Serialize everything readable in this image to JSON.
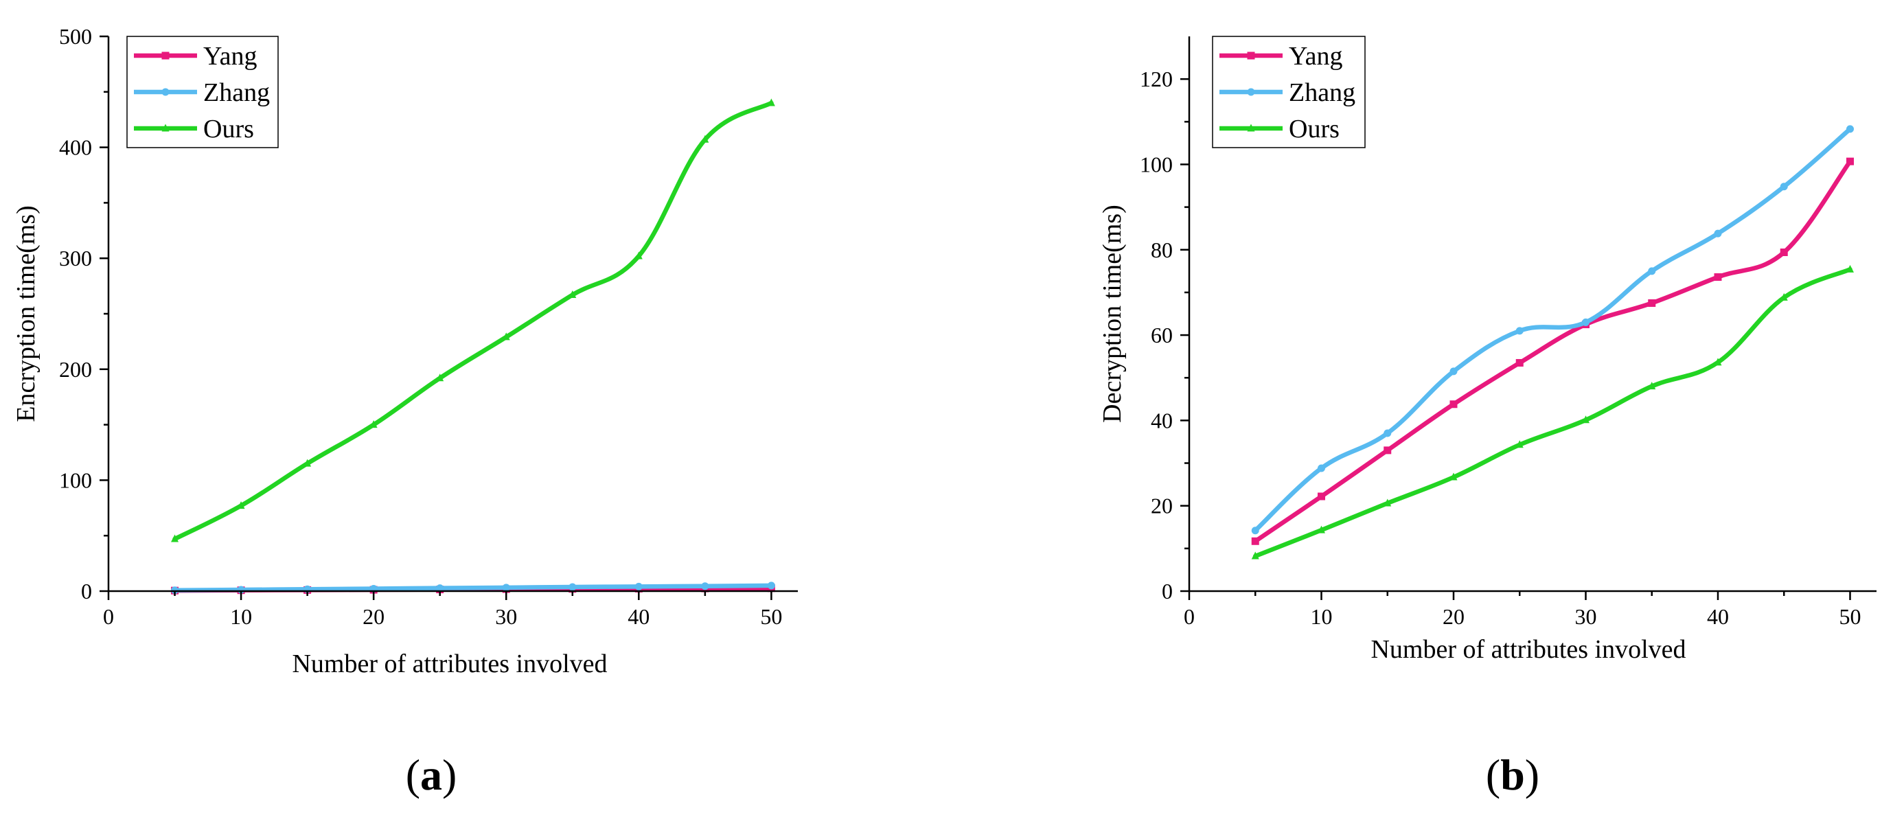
{
  "chart_data": [
    {
      "type": "line",
      "panel_label": "a",
      "xlabel": "Number of attributes involved",
      "ylabel": "Encryption time(ms)",
      "xlim": [
        0,
        52
      ],
      "ylim": [
        0,
        500
      ],
      "xticks": [
        0,
        10,
        20,
        30,
        40,
        50
      ],
      "yticks": [
        0,
        100,
        200,
        300,
        400,
        500
      ],
      "x": [
        5,
        10,
        15,
        20,
        25,
        30,
        35,
        40,
        45,
        50
      ],
      "legend_position": "top-left",
      "series": [
        {
          "name": "Yang",
          "color": "#e8197d",
          "marker": "square",
          "values": [
            0.5,
            0.8,
            1.0,
            1.2,
            1.5,
            1.8,
            2.0,
            2.2,
            2.4,
            2.6
          ]
        },
        {
          "name": "Zhang",
          "color": "#58baf0",
          "marker": "circle",
          "values": [
            0.8,
            1.2,
            1.7,
            2.2,
            2.7,
            3.2,
            3.7,
            4.1,
            4.5,
            5.0
          ]
        },
        {
          "name": "Ours",
          "color": "#22d422",
          "marker": "triangle",
          "values": [
            47,
            77,
            115,
            150,
            192,
            229,
            267,
            302,
            407,
            440
          ]
        }
      ]
    },
    {
      "type": "line",
      "panel_label": "b",
      "xlabel": "Number of attributes involved",
      "ylabel": "Decryption time(ms)",
      "xlim": [
        0,
        52
      ],
      "ylim": [
        0,
        130
      ],
      "xticks": [
        0,
        10,
        20,
        30,
        40,
        50
      ],
      "yticks": [
        0,
        20,
        40,
        60,
        80,
        100,
        120
      ],
      "x": [
        5,
        10,
        15,
        20,
        25,
        30,
        35,
        40,
        45,
        50
      ],
      "legend_position": "top-left",
      "series": [
        {
          "name": "Yang",
          "color": "#e8197d",
          "marker": "square",
          "values": [
            11.7,
            22.2,
            33.0,
            43.8,
            53.5,
            62.5,
            67.5,
            73.6,
            79.4,
            100.7
          ]
        },
        {
          "name": "Zhang",
          "color": "#58baf0",
          "marker": "circle",
          "values": [
            14.2,
            28.8,
            37.0,
            51.5,
            61.0,
            63.0,
            75.0,
            83.8,
            94.8,
            108.3
          ]
        },
        {
          "name": "Ours",
          "color": "#22d422",
          "marker": "triangle",
          "values": [
            8.2,
            14.3,
            20.6,
            26.7,
            34.3,
            40.1,
            48.0,
            53.6,
            68.8,
            75.4
          ]
        }
      ]
    }
  ]
}
